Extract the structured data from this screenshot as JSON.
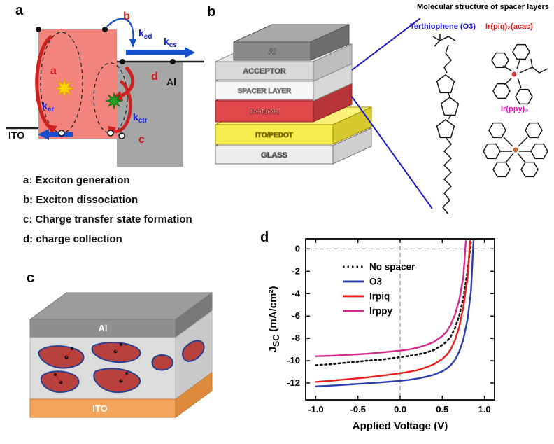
{
  "figure": {
    "panels": {
      "a": {
        "label": "a",
        "electrodes": {
          "left": "ITO",
          "right": "Al"
        },
        "process_marks": {
          "a": "a",
          "b": "b",
          "c": "c",
          "d": "d"
        },
        "rate_constants": {
          "ked": {
            "base": "k",
            "sub": "ed"
          },
          "kcs": {
            "base": "k",
            "sub": "cs"
          },
          "ker": {
            "base": "k",
            "sub": "er"
          },
          "kctr": {
            "base": "k",
            "sub": "ctr"
          }
        },
        "legend": [
          "a: Exciton generation",
          "b: Exciton dissociation",
          "c: Charge transfer state formation",
          "d: charge collection"
        ]
      },
      "b": {
        "label": "b",
        "layers": [
          {
            "name": "Al",
            "color": "#8a8a8a"
          },
          {
            "name": "ACCEPTOR",
            "color": "#d9d9d9"
          },
          {
            "name": "SPACER LAYER",
            "color": "#f7f7f7"
          },
          {
            "name": "DONOR",
            "color": "#e2494d"
          },
          {
            "name": "ITO/PEDOT",
            "color": "#f6ec4e"
          },
          {
            "name": "GLASS",
            "color": "#ececec"
          }
        ],
        "molecular_panel": {
          "title": "Molecular structure of spacer layers",
          "molecules": [
            {
              "name": "Terthiophene (O3)",
              "color": "#1818dd"
            },
            {
              "name": "Ir(piq)₂(acac)",
              "color": "#e51414"
            },
            {
              "name": "Ir(ppy)₃",
              "color": "#e316c6"
            }
          ]
        }
      },
      "c": {
        "label": "c",
        "top_electrode": "Al",
        "bottom_electrode": "ITO"
      },
      "d": {
        "label": "d"
      }
    },
    "chart_data": {
      "type": "line",
      "xlabel": "Applied Voltage (V)",
      "ylabel_main": "J",
      "ylabel_sub": "SC",
      "ylabel_unit": " (mA/cm²)",
      "xlim": [
        -1.12,
        1.12
      ],
      "ylim": [
        -13.5,
        0.9
      ],
      "xticks": [
        -1.0,
        -0.5,
        0.0,
        0.5,
        1.0
      ],
      "yticks": [
        0,
        -2,
        -4,
        -6,
        -8,
        -10,
        -12
      ],
      "zero_reference_lines": true,
      "legend_position": "inside-top-left",
      "series": [
        {
          "name": "No spacer",
          "color": "#111111",
          "style": "dotted",
          "x": [
            -1.0,
            -0.9,
            -0.8,
            -0.7,
            -0.6,
            -0.5,
            -0.4,
            -0.3,
            -0.2,
            -0.1,
            0.0,
            0.1,
            0.2,
            0.3,
            0.4,
            0.5,
            0.55,
            0.6,
            0.65,
            0.7,
            0.75,
            0.8,
            0.84
          ],
          "y": [
            -10.4,
            -10.35,
            -10.3,
            -10.22,
            -10.15,
            -10.08,
            -10.0,
            -9.95,
            -9.88,
            -9.78,
            -9.68,
            -9.58,
            -9.45,
            -9.3,
            -9.05,
            -8.6,
            -8.3,
            -7.85,
            -7.1,
            -6.0,
            -4.4,
            -2.0,
            0.7
          ]
        },
        {
          "name": "O3",
          "color": "#2b3faa",
          "style": "solid",
          "x": [
            -1.0,
            -0.8,
            -0.6,
            -0.4,
            -0.2,
            0.0,
            0.1,
            0.2,
            0.3,
            0.4,
            0.5,
            0.55,
            0.6,
            0.65,
            0.7,
            0.75,
            0.8,
            0.84,
            0.87
          ],
          "y": [
            -12.3,
            -12.22,
            -12.12,
            -12.02,
            -11.92,
            -11.8,
            -11.72,
            -11.6,
            -11.45,
            -11.25,
            -10.95,
            -10.72,
            -10.4,
            -9.95,
            -9.2,
            -8.1,
            -6.3,
            -3.8,
            0.7
          ]
        },
        {
          "name": "Irpiq",
          "color": "#e8201d",
          "style": "solid",
          "x": [
            -1.0,
            -0.8,
            -0.6,
            -0.4,
            -0.2,
            0.0,
            0.1,
            0.2,
            0.3,
            0.4,
            0.5,
            0.55,
            0.6,
            0.65,
            0.7,
            0.75,
            0.8,
            0.83
          ],
          "y": [
            -11.9,
            -11.78,
            -11.64,
            -11.5,
            -11.32,
            -11.12,
            -11.0,
            -10.85,
            -10.62,
            -10.32,
            -9.85,
            -9.5,
            -9.0,
            -8.2,
            -7.0,
            -5.2,
            -2.6,
            0.7
          ]
        },
        {
          "name": "Irppy",
          "color": "#d42a8c",
          "style": "solid",
          "x": [
            -1.0,
            -0.8,
            -0.6,
            -0.4,
            -0.2,
            0.0,
            0.1,
            0.2,
            0.3,
            0.4,
            0.5,
            0.55,
            0.6,
            0.65,
            0.7,
            0.75,
            0.78
          ],
          "y": [
            -9.6,
            -9.55,
            -9.47,
            -9.38,
            -9.25,
            -9.1,
            -9.0,
            -8.85,
            -8.62,
            -8.32,
            -7.8,
            -7.4,
            -6.8,
            -5.9,
            -4.6,
            -2.5,
            0.7
          ]
        }
      ]
    }
  }
}
